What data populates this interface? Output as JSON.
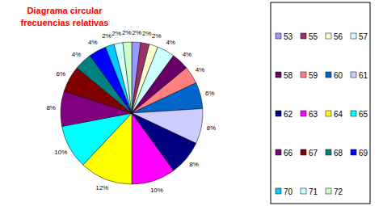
{
  "chart_data": {
    "type": "pie",
    "title": "Diagrama circular frecuencias relativas",
    "categories": [
      "53",
      "55",
      "56",
      "57",
      "58",
      "59",
      "60",
      "61",
      "62",
      "63",
      "64",
      "65",
      "66",
      "67",
      "68",
      "69",
      "70",
      "71",
      "72"
    ],
    "values": [
      2,
      2,
      2,
      4,
      4,
      4,
      6,
      8,
      8,
      10,
      12,
      10,
      8,
      6,
      4,
      4,
      2,
      2,
      2
    ],
    "value_labels": [
      "2%",
      "2%",
      "2%",
      "4%",
      "4%",
      "4%",
      "6%",
      "8%",
      "8%",
      "10%",
      "12%",
      "10%",
      "8%",
      "6%",
      "4%",
      "4%",
      "2%",
      "2%",
      "2%"
    ],
    "colors": [
      "#9999ff",
      "#993366",
      "#ffffcc",
      "#ccffff",
      "#660066",
      "#ff8080",
      "#0066cc",
      "#ccccff",
      "#000080",
      "#ff00ff",
      "#ffff00",
      "#00ffff",
      "#800080",
      "#800000",
      "#008080",
      "#0000ff",
      "#00ccff",
      "#ccffff",
      "#ccffcc"
    ],
    "data_labels": true,
    "legend": "right"
  }
}
